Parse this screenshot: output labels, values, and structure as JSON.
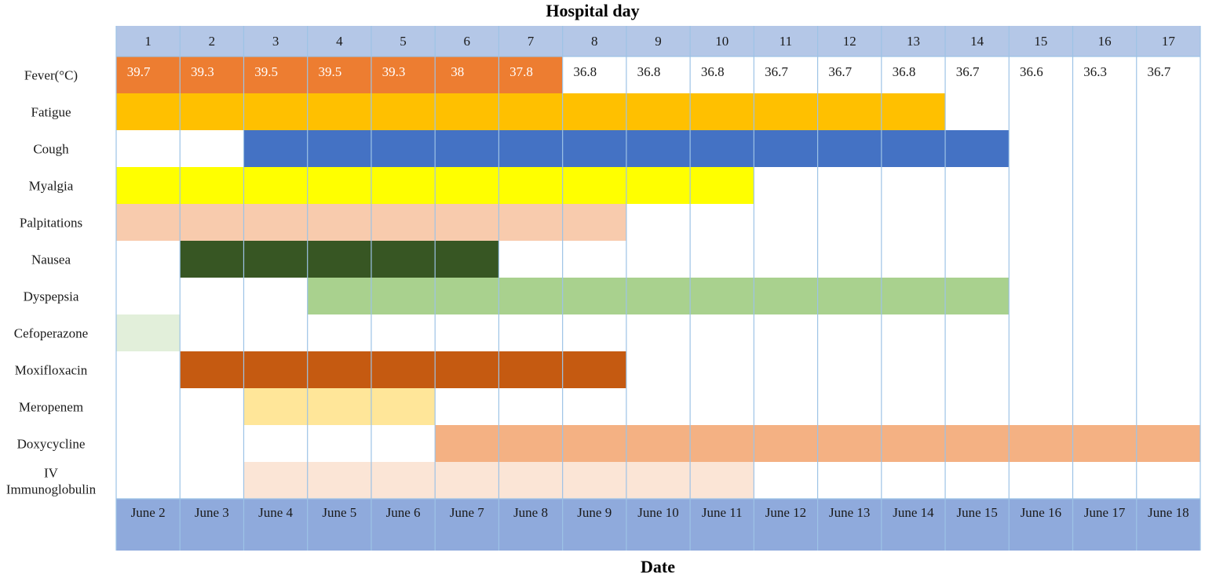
{
  "chart_data": {
    "type": "table",
    "title": "Hospital day",
    "xlabel": "Date",
    "header_color": "#b4c7e7",
    "date_row_color": "#8faadc",
    "grid_color": "#9dc3e6",
    "days": [
      "1",
      "2",
      "3",
      "4",
      "5",
      "6",
      "7",
      "8",
      "9",
      "10",
      "11",
      "12",
      "13",
      "14",
      "15",
      "16",
      "17"
    ],
    "dates": [
      "June 2",
      "June 3",
      "June 4",
      "June 5",
      "June 6",
      "June 7",
      "June 8",
      "June 9",
      "June 10",
      "June 11",
      "June 12",
      "June 13",
      "June 14",
      "June 15",
      "June 16",
      "June 17",
      "June 18"
    ],
    "fever": {
      "label": "Fever(°C)",
      "values": [
        "39.7",
        "39.3",
        "39.5",
        "39.5",
        "39.3",
        "38",
        "37.8",
        "36.8",
        "36.8",
        "36.8",
        "36.7",
        "36.7",
        "36.8",
        "36.7",
        "36.6",
        "36.3",
        "36.7"
      ],
      "highlight_days": [
        1,
        7
      ],
      "highlight_color": "#ed7d31"
    },
    "rows": [
      {
        "label": "Fatigue",
        "start_day": 1,
        "end_day": 13,
        "color": "#ffc000"
      },
      {
        "label": "Cough",
        "start_day": 3,
        "end_day": 14,
        "color": "#4472c4"
      },
      {
        "label": "Myalgia",
        "start_day": 1,
        "end_day": 10,
        "color": "#ffff00"
      },
      {
        "label": "Palpitations",
        "start_day": 1,
        "end_day": 8,
        "color": "#f8cbad"
      },
      {
        "label": "Nausea",
        "start_day": 2,
        "end_day": 6,
        "color": "#375623"
      },
      {
        "label": "Dyspepsia",
        "start_day": 4,
        "end_day": 14,
        "color": "#a9d18e"
      },
      {
        "label": "Cefoperazone",
        "start_day": 1,
        "end_day": 1,
        "color": "#e2efda"
      },
      {
        "label": "Moxifloxacin",
        "start_day": 2,
        "end_day": 8,
        "color": "#c55a11"
      },
      {
        "label": "Meropenem",
        "start_day": 3,
        "end_day": 5,
        "color": "#ffe699"
      },
      {
        "label": "Doxycycline",
        "start_day": 6,
        "end_day": 17,
        "color": "#f4b183"
      },
      {
        "label": "IV Immunoglobulin",
        "start_day": 3,
        "end_day": 10,
        "color": "#fbe5d6"
      }
    ]
  }
}
